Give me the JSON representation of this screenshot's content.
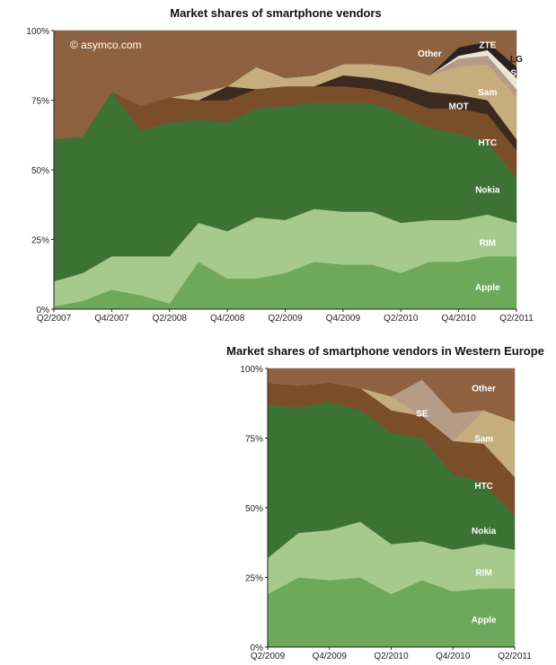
{
  "chart_data": [
    {
      "type": "area",
      "stacked": true,
      "title": "Market shares of smartphone vendors",
      "watermark": "© asymco.com",
      "x": [
        "Q2/2007",
        "Q3/2007",
        "Q4/2007",
        "Q1/2008",
        "Q2/2008",
        "Q3/2008",
        "Q4/2008",
        "Q1/2009",
        "Q2/2009",
        "Q3/2009",
        "Q4/2009",
        "Q1/2010",
        "Q2/2010",
        "Q3/2010",
        "Q4/2010",
        "Q1/2011",
        "Q2/2011"
      ],
      "x_tick_labels": [
        "Q2/2007",
        "Q4/2007",
        "Q2/2008",
        "Q4/2008",
        "Q2/2009",
        "Q4/2009",
        "Q2/2010",
        "Q4/2010",
        "Q2/2011"
      ],
      "ylim": [
        0,
        100
      ],
      "y_tick_labels": [
        "0%",
        "25%",
        "50%",
        "75%",
        "100%"
      ],
      "grid": false,
      "series": [
        {
          "name": "Apple",
          "color": "#6ea85a",
          "values": [
            1,
            3,
            7,
            5,
            2,
            17,
            11,
            11,
            13,
            17,
            16,
            16,
            13,
            17,
            17,
            19,
            19
          ]
        },
        {
          "name": "RIM",
          "color": "#a6c98c",
          "values": [
            9,
            10,
            12,
            14,
            17,
            14,
            17,
            22,
            19,
            19,
            19,
            19,
            18,
            15,
            15,
            15,
            12
          ]
        },
        {
          "name": "Nokia",
          "color": "#3c7335",
          "values": [
            51,
            49,
            59,
            45,
            48,
            37,
            39,
            39,
            41,
            38,
            39,
            39,
            39,
            33,
            31,
            26,
            16
          ]
        },
        {
          "name": "HTC",
          "color": "#7b4e2a",
          "values": [
            0,
            0,
            0,
            9,
            9,
            7,
            8,
            7,
            7,
            6,
            6,
            5,
            6,
            7,
            9,
            10,
            10
          ]
        },
        {
          "name": "MOT",
          "color": "#3c2a1f",
          "values": [
            0,
            0,
            0,
            0,
            0,
            0,
            5,
            0,
            0,
            0,
            4,
            4,
            5,
            6,
            5,
            5,
            4
          ]
        },
        {
          "name": "Sam",
          "color": "#c5ad7e",
          "values": [
            0,
            0,
            0,
            0,
            0,
            3,
            0,
            8,
            3,
            4,
            4,
            5,
            6,
            6,
            10,
            13,
            15
          ]
        },
        {
          "name": "SE",
          "color": "#b69c86",
          "values": [
            0,
            0,
            0,
            0,
            0,
            0,
            0,
            0,
            0,
            0,
            0,
            0,
            0,
            0,
            3,
            3,
            3
          ]
        },
        {
          "name": "LG",
          "color": "#ece6d2",
          "values": [
            0,
            0,
            0,
            0,
            0,
            0,
            0,
            0,
            0,
            0,
            0,
            0,
            0,
            0,
            1,
            2,
            4
          ]
        },
        {
          "name": "ZTE",
          "color": "#2a2220",
          "values": [
            0,
            0,
            0,
            0,
            0,
            0,
            0,
            0,
            0,
            0,
            0,
            0,
            0,
            0,
            3,
            3,
            4
          ]
        },
        {
          "name": "Other",
          "color": "#8e6240",
          "values": [
            39,
            38,
            22,
            27,
            24,
            22,
            20,
            13,
            17,
            16,
            12,
            12,
            13,
            16,
            6,
            4,
            13
          ]
        }
      ],
      "series_labels": [
        {
          "text": "Apple",
          "x": "Q1/2011",
          "y": 8
        },
        {
          "text": "RIM",
          "x": "Q1/2011",
          "y": 24
        },
        {
          "text": "Nokia",
          "x": "Q1/2011",
          "y": 43
        },
        {
          "text": "HTC",
          "x": "Q1/2011",
          "y": 60
        },
        {
          "text": "MOT",
          "x": "Q4/2010",
          "y": 73
        },
        {
          "text": "Sam",
          "x": "Q1/2011",
          "y": 78
        },
        {
          "text": "SE",
          "x": "Q2/2011",
          "y": 85
        },
        {
          "text": "LG",
          "x": "Q2/2011",
          "y": 90
        },
        {
          "text": "ZTE",
          "x": "Q1/2011",
          "y": 95
        },
        {
          "text": "Other",
          "x": "Q3/2010",
          "y": 92
        }
      ]
    },
    {
      "type": "area",
      "stacked": true,
      "title": "Market shares of smartphone vendors in Western Europe",
      "x": [
        "Q2/2009",
        "Q3/2009",
        "Q4/2009",
        "Q1/2010",
        "Q2/2010",
        "Q3/2010",
        "Q4/2010",
        "Q1/2011",
        "Q2/2011"
      ],
      "x_tick_labels": [
        "Q2/2009",
        "Q4/2009",
        "Q2/2010",
        "Q4/2010",
        "Q2/2011"
      ],
      "ylim": [
        0,
        100
      ],
      "y_tick_labels": [
        "0%",
        "25%",
        "50%",
        "75%",
        "100%"
      ],
      "grid": false,
      "series": [
        {
          "name": "Apple",
          "color": "#6ea85a",
          "values": [
            19,
            25,
            24,
            25,
            19,
            24,
            20,
            21,
            21
          ]
        },
        {
          "name": "RIM",
          "color": "#a6c98c",
          "values": [
            13,
            16,
            18,
            20,
            18,
            14,
            15,
            16,
            14
          ]
        },
        {
          "name": "Nokia",
          "color": "#3c7335",
          "values": [
            55,
            45,
            46,
            40,
            40,
            37,
            27,
            22,
            12
          ]
        },
        {
          "name": "HTC",
          "color": "#7b4e2a",
          "values": [
            8,
            8,
            7,
            8,
            8,
            8,
            12,
            14,
            14
          ]
        },
        {
          "name": "Sam",
          "color": "#c5ad7e",
          "values": [
            0,
            0,
            0,
            0,
            5,
            0,
            0,
            12,
            20
          ]
        },
        {
          "name": "SE",
          "color": "#b69c86",
          "values": [
            0,
            0,
            0,
            0,
            0,
            13,
            10,
            0,
            0
          ]
        },
        {
          "name": "Other",
          "color": "#8e6240",
          "values": [
            5,
            6,
            5,
            7,
            10,
            4,
            16,
            15,
            19
          ]
        }
      ],
      "series_labels": [
        {
          "text": "Apple",
          "x": "Q1/2011",
          "y": 10
        },
        {
          "text": "RIM",
          "x": "Q1/2011",
          "y": 27
        },
        {
          "text": "Nokia",
          "x": "Q1/2011",
          "y": 42
        },
        {
          "text": "HTC",
          "x": "Q1/2011",
          "y": 58
        },
        {
          "text": "SE",
          "x": "Q3/2010",
          "y": 84
        },
        {
          "text": "Sam",
          "x": "Q1/2011",
          "y": 75
        },
        {
          "text": "Other",
          "x": "Q1/2011",
          "y": 93
        }
      ]
    }
  ]
}
